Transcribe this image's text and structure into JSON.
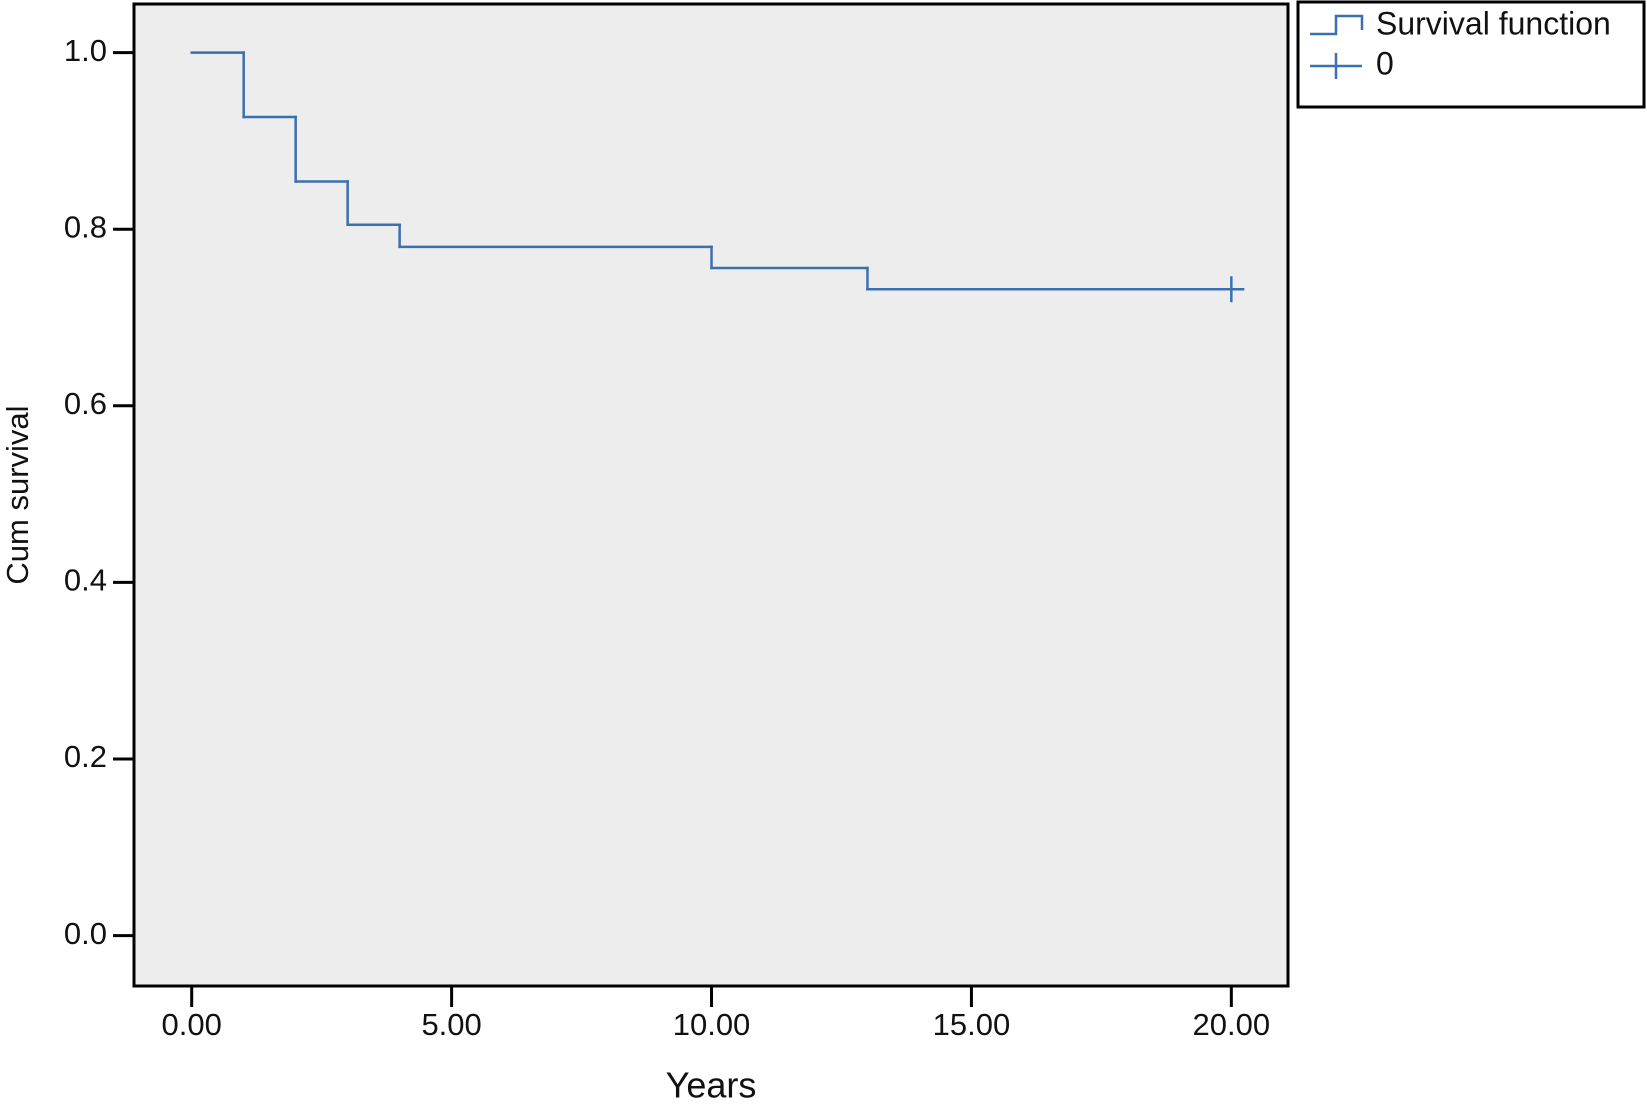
{
  "chart_data": {
    "type": "step",
    "xlabel": "Years",
    "ylabel": "Cum survival",
    "xlim": [
      -1.11,
      21.09
    ],
    "ylim": [
      -0.057,
      1.055
    ],
    "xticks": [
      {
        "value": 0,
        "label": "0.00"
      },
      {
        "value": 5,
        "label": "5.00"
      },
      {
        "value": 10,
        "label": "10.00"
      },
      {
        "value": 15,
        "label": "15.00"
      },
      {
        "value": 20,
        "label": "20.00"
      }
    ],
    "yticks": [
      {
        "value": 0,
        "label": "0.0"
      },
      0.2,
      0.4,
      0.6,
      0.8,
      {
        "value": 1,
        "label": "1.0"
      }
    ],
    "background": "#ededed",
    "legend": "outside-top-right",
    "series": [
      {
        "name": "Survival function",
        "color": "#3a6fb0",
        "x": [
          0,
          1,
          2,
          3,
          4,
          10,
          13,
          20
        ],
        "values": [
          1.0,
          0.927,
          0.854,
          0.805,
          0.78,
          0.756,
          0.732,
          0.732
        ]
      },
      {
        "name": "0",
        "color": "#3a6fb0",
        "marker": "plus",
        "x": [
          20
        ],
        "values": [
          0.732
        ]
      }
    ]
  }
}
